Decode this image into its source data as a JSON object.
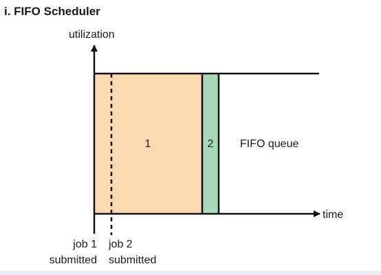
{
  "title": "i. FIFO Scheduler",
  "axes": {
    "y_label": "utilization",
    "x_label": "time"
  },
  "blocks": [
    {
      "label": "1",
      "fill": "#fbd9b3"
    },
    {
      "label": "2",
      "fill": "#a8d9b8"
    }
  ],
  "queue_label": "FIFO queue",
  "markers": {
    "job1": {
      "line1": "job 1",
      "line2": "submitted"
    },
    "job2": {
      "line1": "job 2",
      "line2": "submitted"
    }
  },
  "colors": {
    "stroke": "#111111",
    "text": "#1a1a1a",
    "footer_band": "#e9edf3"
  }
}
